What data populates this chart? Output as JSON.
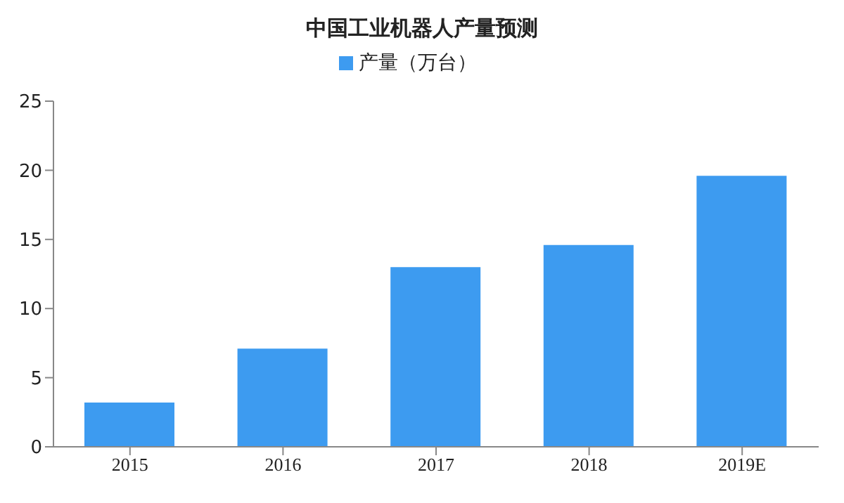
{
  "chart_data": {
    "type": "bar",
    "title": "中国工业机器人产量预测",
    "categories": [
      "2015",
      "2016",
      "2017",
      "2018",
      "2019E"
    ],
    "series": [
      {
        "name": "产量（万台）",
        "color": "#3d9bf0",
        "values": [
          3.2,
          7.1,
          13.0,
          14.6,
          19.6
        ]
      }
    ],
    "ylim": [
      0,
      25
    ],
    "yticks": [
      0,
      5,
      10,
      15,
      20,
      25
    ],
    "grid": false,
    "legend": "top"
  }
}
